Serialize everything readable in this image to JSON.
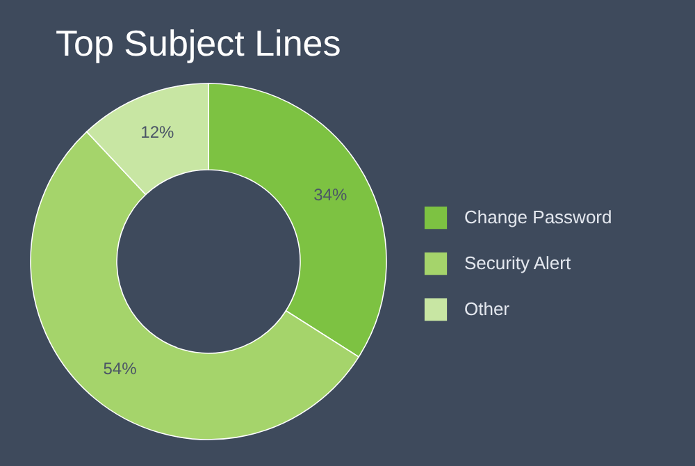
{
  "chart_data": {
    "type": "donut",
    "title": "Top Subject Lines",
    "categories": [
      "Change Password",
      "Security Alert",
      "Other"
    ],
    "values": [
      34,
      54,
      12
    ],
    "value_labels": [
      "34%",
      "54%",
      "12%"
    ],
    "colors": [
      "#7dc242",
      "#a5d46b",
      "#c8e6a3"
    ],
    "legend": "right"
  }
}
